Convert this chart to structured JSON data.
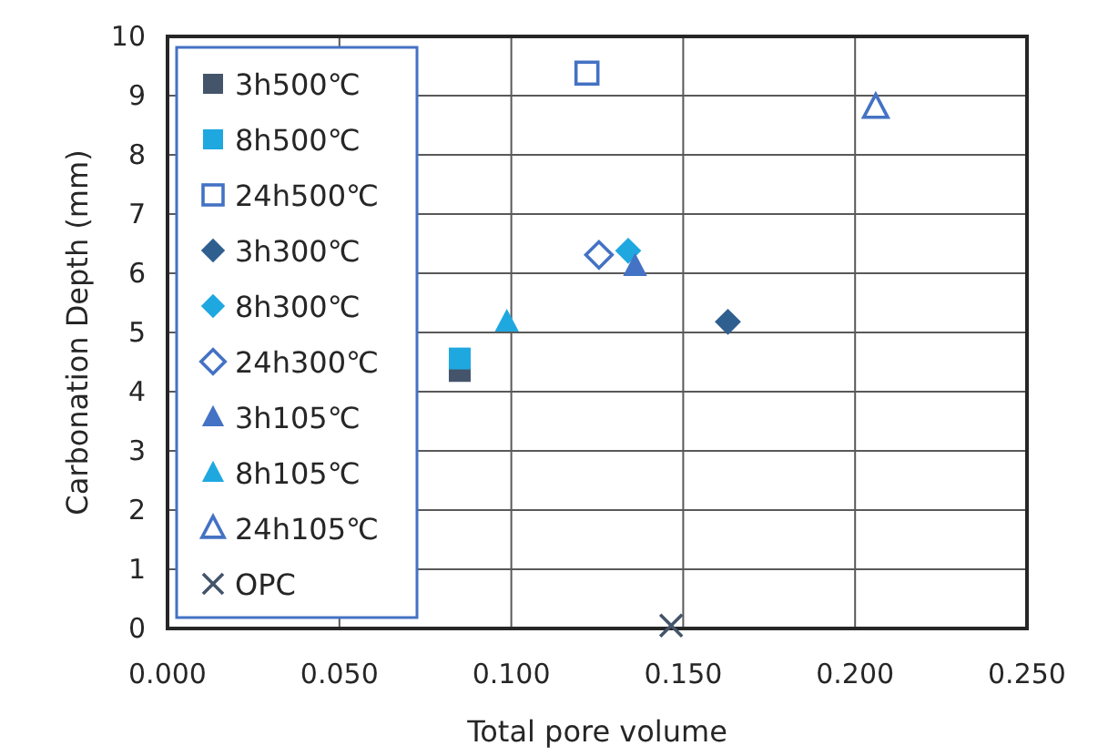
{
  "chart_data": {
    "type": "scatter",
    "xlabel": "Total pore volume",
    "ylabel": "Carbonation Depth (mm)",
    "xlim": [
      0,
      0.25
    ],
    "ylim": [
      0,
      10
    ],
    "xticks": [
      {
        "value": 0,
        "label": "0.000"
      },
      {
        "value": 0.05,
        "label": "0.050"
      },
      {
        "value": 0.1,
        "label": "0.100"
      },
      {
        "value": 0.15,
        "label": "0.150"
      },
      {
        "value": 0.2,
        "label": "0.200"
      },
      {
        "value": 0.25,
        "label": "0.250"
      }
    ],
    "yticks": [
      0,
      1,
      2,
      3,
      4,
      5,
      6,
      7,
      8,
      9,
      10
    ],
    "grid": true,
    "legend": "left",
    "series": [
      {
        "name": "3h500℃",
        "color": "#44546a",
        "marker": "square",
        "x": [
          0.085
        ],
        "values": [
          4.35
        ]
      },
      {
        "name": "8h500℃",
        "color": "#1fa8e0",
        "marker": "square",
        "x": [
          0.085
        ],
        "values": [
          4.56
        ]
      },
      {
        "name": "24h500℃",
        "color": "#4472c4",
        "marker": "square-open",
        "x": [
          0.122
        ],
        "values": [
          9.38
        ]
      },
      {
        "name": "3h300℃",
        "color": "#2f5f8f",
        "marker": "diamond",
        "x": [
          0.163
        ],
        "values": [
          5.18
        ]
      },
      {
        "name": "8h300℃",
        "color": "#1fa8e0",
        "marker": "diamond",
        "x": [
          0.134
        ],
        "values": [
          6.38
        ]
      },
      {
        "name": "24h300℃",
        "color": "#4472c4",
        "marker": "diamond-open",
        "x": [
          0.1255
        ],
        "values": [
          6.31
        ]
      },
      {
        "name": "3h105℃",
        "color": "#4472c4",
        "marker": "triangle",
        "x": [
          0.136
        ],
        "values": [
          6.12
        ]
      },
      {
        "name": "8h105℃",
        "color": "#1fa8e0",
        "marker": "triangle",
        "x": [
          0.0987
        ],
        "values": [
          5.18
        ]
      },
      {
        "name": "24h105℃",
        "color": "#4472c4",
        "marker": "triangle-open",
        "x": [
          0.206
        ],
        "values": [
          8.8
        ]
      },
      {
        "name": "OPC",
        "color": "#44546a",
        "marker": "cross",
        "x": [
          0.1465
        ],
        "values": [
          0.05
        ]
      }
    ]
  }
}
